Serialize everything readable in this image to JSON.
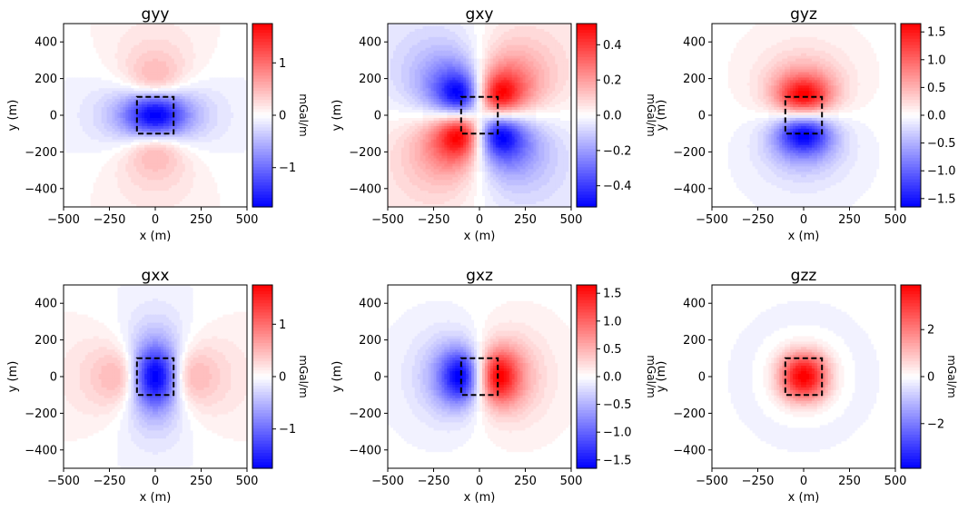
{
  "chart_data": [
    {
      "type": "heatmap",
      "title": "gyy",
      "component": "yy",
      "xlabel": "x (m)",
      "ylabel": "y (m)",
      "xlim": [
        -500,
        500
      ],
      "ylim": [
        -500,
        500
      ],
      "xticks": [
        "−500",
        "−250",
        "0",
        "250",
        "500"
      ],
      "yticks": [
        "−400",
        "−200",
        "0",
        "200",
        "400"
      ],
      "colorbar": {
        "label": "mGal/m",
        "range": [
          -1.75,
          1.75
        ],
        "ticks": [
          -1,
          0,
          1
        ],
        "tick_labels": [
          "−1",
          "0",
          "1"
        ]
      },
      "prism": {
        "x": [
          -100,
          100
        ],
        "y": [
          -100,
          100
        ]
      },
      "grid": false
    },
    {
      "type": "heatmap",
      "title": "gxy",
      "component": "xy",
      "xlabel": "x (m)",
      "ylabel": "y (m)",
      "xlim": [
        -500,
        500
      ],
      "ylim": [
        -500,
        500
      ],
      "xticks": [
        "−500",
        "−250",
        "0",
        "250",
        "500"
      ],
      "yticks": [
        "−400",
        "−200",
        "0",
        "200",
        "400"
      ],
      "colorbar": {
        "label": "mGal/m",
        "range": [
          -0.52,
          0.52
        ],
        "ticks": [
          -0.4,
          -0.2,
          0.0,
          0.2,
          0.4
        ],
        "tick_labels": [
          "−0.4",
          "−0.2",
          "0.0",
          "0.2",
          "0.4"
        ]
      },
      "prism": {
        "x": [
          -100,
          100
        ],
        "y": [
          -100,
          100
        ]
      },
      "grid": false
    },
    {
      "type": "heatmap",
      "title": "gyz",
      "component": "yz",
      "xlabel": "x (m)",
      "ylabel": "y (m)",
      "xlim": [
        -500,
        500
      ],
      "ylim": [
        -500,
        500
      ],
      "xticks": [
        "−500",
        "−250",
        "0",
        "250",
        "500"
      ],
      "yticks": [
        "−400",
        "−200",
        "0",
        "200",
        "400"
      ],
      "colorbar": {
        "label": "mGal/m",
        "range": [
          -1.65,
          1.65
        ],
        "ticks": [
          -1.5,
          -1.0,
          -0.5,
          0.0,
          0.5,
          1.0,
          1.5
        ],
        "tick_labels": [
          "−1.5",
          "−1.0",
          "−0.5",
          "0.0",
          "0.5",
          "1.0",
          "1.5"
        ]
      },
      "prism": {
        "x": [
          -100,
          100
        ],
        "y": [
          -100,
          100
        ]
      },
      "grid": false
    },
    {
      "type": "heatmap",
      "title": "gxx",
      "component": "xx",
      "xlabel": "x (m)",
      "ylabel": "y (m)",
      "xlim": [
        -500,
        500
      ],
      "ylim": [
        -500,
        500
      ],
      "xticks": [
        "−500",
        "−250",
        "0",
        "250",
        "500"
      ],
      "yticks": [
        "−400",
        "−200",
        "0",
        "200",
        "400"
      ],
      "colorbar": {
        "label": "mGal/m",
        "range": [
          -1.75,
          1.75
        ],
        "ticks": [
          -1,
          0,
          1
        ],
        "tick_labels": [
          "−1",
          "0",
          "1"
        ]
      },
      "prism": {
        "x": [
          -100,
          100
        ],
        "y": [
          -100,
          100
        ]
      },
      "grid": false
    },
    {
      "type": "heatmap",
      "title": "gxz",
      "component": "xz",
      "xlabel": "x (m)",
      "ylabel": "y (m)",
      "xlim": [
        -500,
        500
      ],
      "ylim": [
        -500,
        500
      ],
      "xticks": [
        "−500",
        "−250",
        "0",
        "250",
        "500"
      ],
      "yticks": [
        "−400",
        "−200",
        "0",
        "200",
        "400"
      ],
      "colorbar": {
        "label": "mGal/m",
        "range": [
          -1.65,
          1.65
        ],
        "ticks": [
          -1.5,
          -1.0,
          -0.5,
          0.0,
          0.5,
          1.0,
          1.5
        ],
        "tick_labels": [
          "−1.5",
          "−1.0",
          "−0.5",
          "0.0",
          "0.5",
          "1.0",
          "1.5"
        ]
      },
      "prism": {
        "x": [
          -100,
          100
        ],
        "y": [
          -100,
          100
        ]
      },
      "grid": false
    },
    {
      "type": "heatmap",
      "title": "gzz",
      "component": "zz",
      "xlabel": "x (m)",
      "ylabel": "y (m)",
      "xlim": [
        -500,
        500
      ],
      "ylim": [
        -500,
        500
      ],
      "xticks": [
        "−500",
        "−250",
        "0",
        "250",
        "500"
      ],
      "yticks": [
        "−400",
        "−200",
        "0",
        "200",
        "400"
      ],
      "colorbar": {
        "label": "mGal/m",
        "range": [
          -3.9,
          3.9
        ],
        "ticks": [
          -2,
          0,
          2
        ],
        "tick_labels": [
          "−2",
          "0",
          "2"
        ]
      },
      "prism": {
        "x": [
          -100,
          100
        ],
        "y": [
          -100,
          100
        ]
      },
      "grid": false
    }
  ],
  "colormap": {
    "name": "bwr",
    "low": "#0000ff",
    "mid": "#ffffff",
    "high": "#ff0000"
  },
  "prism_outline_color": "#000000"
}
